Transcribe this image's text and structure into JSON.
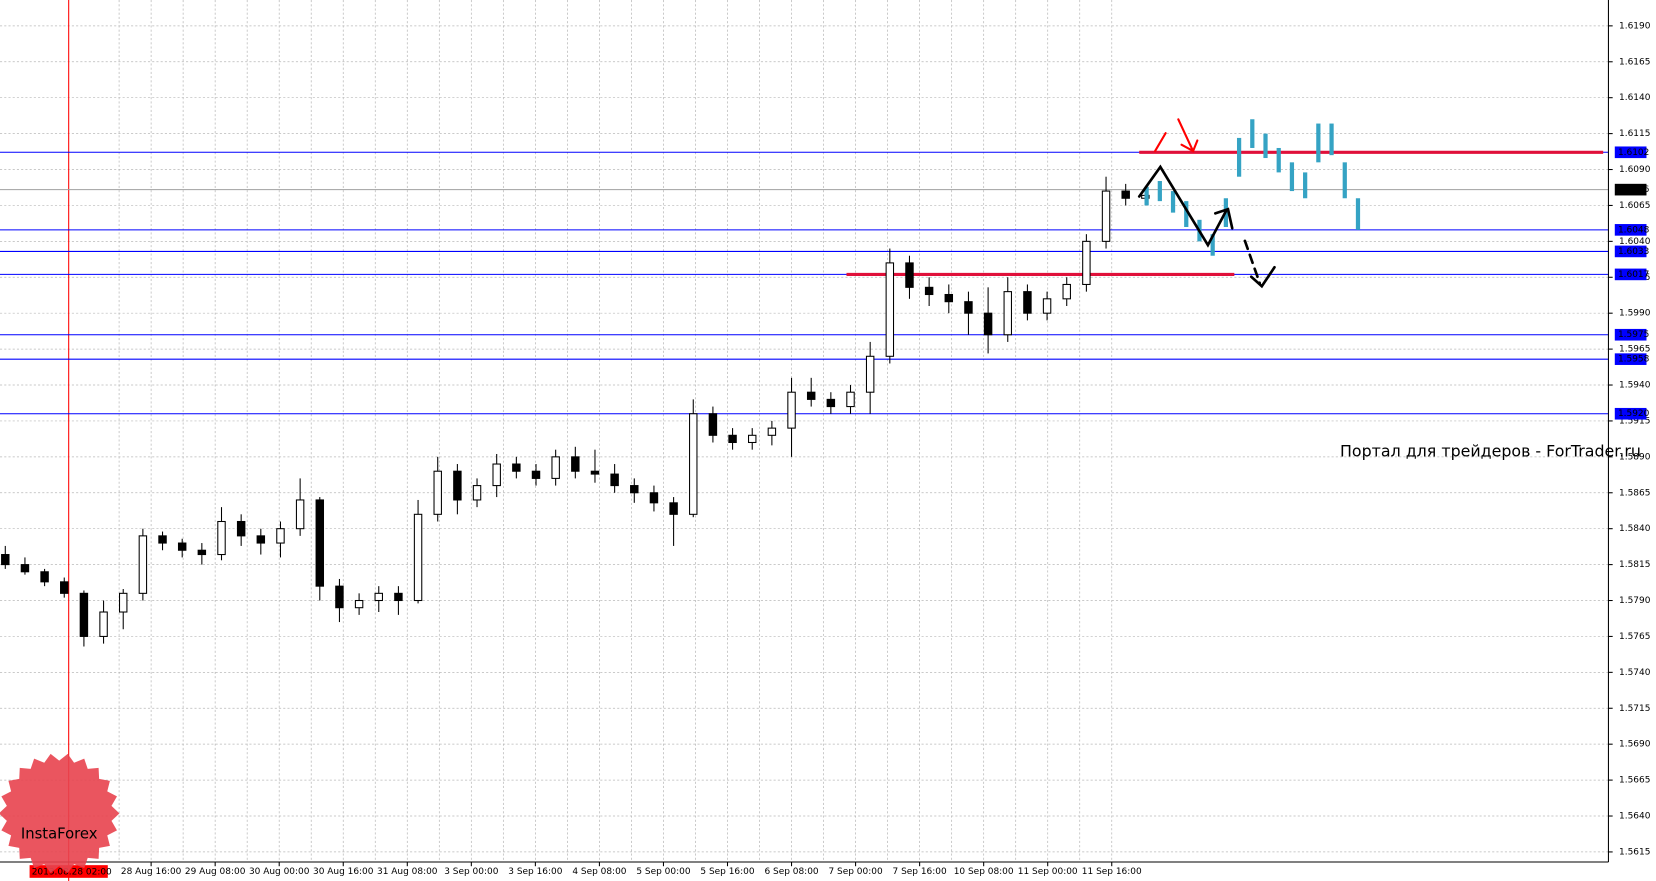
{
  "chart_data": {
    "type": "candlestick",
    "ylim": [
      1.5608,
      1.6208
    ],
    "yticks": [
      {
        "value": 1.5615,
        "label": "1.5615"
      },
      {
        "value": 1.564,
        "label": "1.5640"
      },
      {
        "value": 1.5665,
        "label": "1.5665"
      },
      {
        "value": 1.569,
        "label": "1.5690"
      },
      {
        "value": 1.5715,
        "label": "1.5715"
      },
      {
        "value": 1.574,
        "label": "1.5740"
      },
      {
        "value": 1.5765,
        "label": "1.5765"
      },
      {
        "value": 1.579,
        "label": "1.5790"
      },
      {
        "value": 1.5815,
        "label": "1.5815"
      },
      {
        "value": 1.584,
        "label": "1.5840"
      },
      {
        "value": 1.5865,
        "label": "1.5865"
      },
      {
        "value": 1.589,
        "label": "1.5890"
      },
      {
        "value": 1.5915,
        "label": "1.5915"
      },
      {
        "value": 1.594,
        "label": "1.5940"
      },
      {
        "value": 1.5965,
        "label": "1.5965"
      },
      {
        "value": 1.599,
        "label": "1.5990"
      },
      {
        "value": 1.6015,
        "label": "1.6015"
      },
      {
        "value": 1.604,
        "label": "1.6040"
      },
      {
        "value": 1.6065,
        "label": "1.6065"
      },
      {
        "value": 1.609,
        "label": "1.6090"
      },
      {
        "value": 1.6115,
        "label": "1.6115"
      },
      {
        "value": 1.614,
        "label": "1.6140"
      },
      {
        "value": 1.6165,
        "label": "1.6165"
      },
      {
        "value": 1.619,
        "label": "1.6190"
      }
    ],
    "x_labels": [
      "28 Aug 16:00",
      "29 Aug 08:00",
      "30 Aug 00:00",
      "30 Aug 16:00",
      "31 Aug 08:00",
      "3 Sep 00:00",
      "3 Sep 16:00",
      "4 Sep 08:00",
      "5 Sep 00:00",
      "5 Sep 16:00",
      "6 Sep 08:00",
      "7 Sep 00:00",
      "7 Sep 16:00",
      "10 Sep 08:00",
      "11 Sep 00:00",
      "11 Sep 16:00"
    ],
    "grid": true,
    "candles": {
      "color": "#000000",
      "open": [
        1.5822,
        1.5815,
        1.581,
        1.5803,
        1.5795,
        1.5765,
        1.5782,
        1.5795,
        1.5835,
        1.583,
        1.5825,
        1.5822,
        1.5845,
        1.5835,
        1.583,
        1.584,
        1.586,
        1.58,
        1.5785,
        1.579,
        1.5795,
        1.579,
        1.585,
        1.588,
        1.586,
        1.587,
        1.5885,
        1.588,
        1.5875,
        1.589,
        1.588,
        1.5878,
        1.587,
        1.5865,
        1.5858,
        1.585,
        1.592,
        1.5905,
        1.59,
        1.5905,
        1.591,
        1.5935,
        1.593,
        1.5925,
        1.5935,
        1.596,
        1.6025,
        1.6008,
        1.6003,
        1.5998,
        1.599,
        1.5975,
        1.6005,
        1.599,
        1.6,
        1.601,
        1.604,
        1.6075,
        1.607
      ],
      "high": [
        1.5828,
        1.582,
        1.5812,
        1.5806,
        1.5797,
        1.579,
        1.5798,
        1.584,
        1.5838,
        1.5833,
        1.583,
        1.5855,
        1.585,
        1.584,
        1.5845,
        1.5875,
        1.5862,
        1.5805,
        1.5795,
        1.58,
        1.58,
        1.586,
        1.589,
        1.5885,
        1.5875,
        1.5892,
        1.589,
        1.5885,
        1.5895,
        1.5897,
        1.5895,
        1.5885,
        1.5875,
        1.587,
        1.5862,
        1.593,
        1.5925,
        1.591,
        1.591,
        1.5915,
        1.5945,
        1.5945,
        1.5935,
        1.594,
        1.597,
        1.6035,
        1.603,
        1.6015,
        1.601,
        1.6005,
        1.6008,
        1.6015,
        1.601,
        1.6005,
        1.6015,
        1.6045,
        1.6085,
        1.608,
        1.6078
      ],
      "low": [
        1.5812,
        1.5808,
        1.58,
        1.5792,
        1.5758,
        1.576,
        1.577,
        1.579,
        1.5825,
        1.582,
        1.5815,
        1.5818,
        1.5828,
        1.5822,
        1.582,
        1.5835,
        1.579,
        1.5775,
        1.578,
        1.5782,
        1.578,
        1.5788,
        1.5845,
        1.585,
        1.5855,
        1.5862,
        1.5875,
        1.587,
        1.587,
        1.5875,
        1.5872,
        1.5865,
        1.5858,
        1.5852,
        1.5828,
        1.5848,
        1.59,
        1.5895,
        1.5895,
        1.5898,
        1.589,
        1.5925,
        1.592,
        1.592,
        1.592,
        1.5955,
        1.6,
        1.5995,
        1.599,
        1.5975,
        1.5962,
        1.597,
        1.5985,
        1.5985,
        1.5995,
        1.6005,
        1.6035,
        1.6065,
        1.6065
      ],
      "close": [
        1.5815,
        1.581,
        1.5803,
        1.5795,
        1.5765,
        1.5782,
        1.5795,
        1.5835,
        1.583,
        1.5825,
        1.5822,
        1.5845,
        1.5835,
        1.583,
        1.584,
        1.586,
        1.58,
        1.5785,
        1.579,
        1.5795,
        1.579,
        1.585,
        1.588,
        1.586,
        1.587,
        1.5885,
        1.588,
        1.5875,
        1.589,
        1.588,
        1.5878,
        1.587,
        1.5865,
        1.5858,
        1.585,
        1.592,
        1.5905,
        1.59,
        1.5905,
        1.591,
        1.5935,
        1.593,
        1.5925,
        1.5935,
        1.596,
        1.6025,
        1.6008,
        1.6003,
        1.5998,
        1.599,
        1.5975,
        1.6005,
        1.599,
        1.6,
        1.601,
        1.604,
        1.6075,
        1.607,
        1.6072
      ]
    },
    "forecast": {
      "color": "#35a3c4",
      "high": [
        1.6078,
        1.6082,
        1.6075,
        1.6068,
        1.6055,
        1.6045,
        1.607,
        1.6112,
        1.6125,
        1.6115,
        1.6105,
        1.6095,
        1.6088,
        1.6122,
        1.6122,
        1.6095,
        1.607
      ],
      "low": [
        1.6065,
        1.6068,
        1.606,
        1.605,
        1.604,
        1.603,
        1.605,
        1.6085,
        1.6105,
        1.6098,
        1.6088,
        1.6075,
        1.607,
        1.6095,
        1.61,
        1.607,
        1.6048
      ]
    },
    "levels": [
      {
        "value": 1.6102,
        "label": "1.6102",
        "color": "#0000ff"
      },
      {
        "value": 1.6076,
        "label": "1.6076",
        "color": "#a0a0a0",
        "label_color": "#000000"
      },
      {
        "value": 1.6048,
        "label": "1.6048",
        "color": "#0000ff"
      },
      {
        "value": 1.6033,
        "label": "1.6033",
        "color": "#0000ff"
      },
      {
        "value": 1.6017,
        "label": "1.6017",
        "color": "#0000ff"
      },
      {
        "value": 1.5975,
        "label": "1.5975",
        "color": "#0000ff"
      },
      {
        "value": 1.5958,
        "label": "1.5958",
        "color": "#0000ff"
      },
      {
        "value": 1.592,
        "label": "1.5920",
        "color": "#0000ff"
      }
    ],
    "trend_lines": [
      {
        "value": 1.6102,
        "color": "#e0103a"
      },
      {
        "value": 1.6017,
        "color": "#e0103a"
      }
    ],
    "marker": {
      "label": "2013.08.28 02:00",
      "color": "#ff0000"
    },
    "watermark": "Портал для трейдеров - ForTrader.ru",
    "logo": "InstaForex"
  }
}
